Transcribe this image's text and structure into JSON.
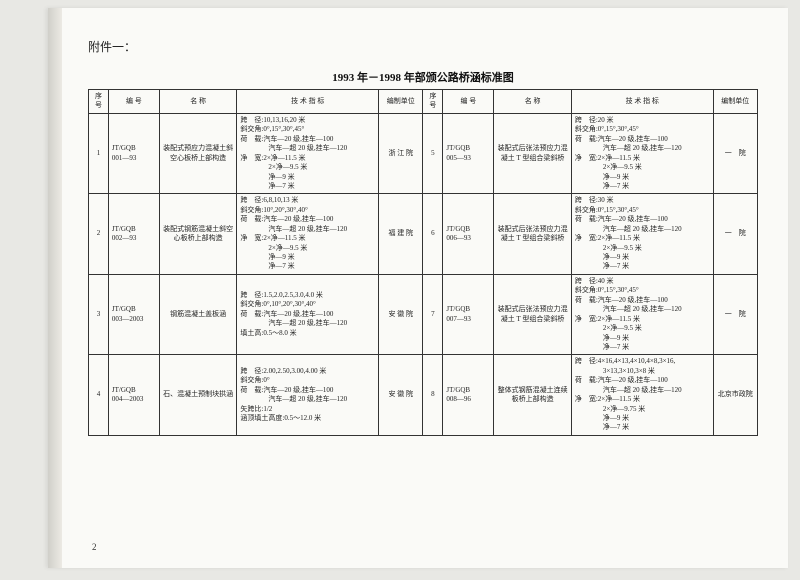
{
  "attachment_label": "附件一：",
  "title": "1993 年－1998 年部颁公路桥涵标准图",
  "page_number": "2",
  "headers": {
    "idx": "序号",
    "code": "编 号",
    "name": "名   称",
    "spec": "技 术 指 标",
    "unit": "编制单位"
  },
  "rows": [
    {
      "left": {
        "idx": "1",
        "code": "JT/GQB\n001—93",
        "name": "装配式预应力混凝土斜空心板桥上部构造",
        "spec": "跨　径:10,13,16,20 米\n斜交角:0°,15°,30°,45°\n荷　载:汽车—20 级,挂车—100\n　　　　汽车—超 20 级,挂车—120\n净　宽:2×净—11.5 米\n　　　　2×净—9.5 米\n　　　　净—9 米\n　　　　净—7 米",
        "unit": "浙 江 院"
      },
      "right": {
        "idx": "5",
        "code": "JT/GQB\n005—93",
        "name": "装配式后张法预应力混凝土 T 型组合梁斜桥",
        "spec": "跨　径:20 米\n斜交角:0°,15°,30°,45°\n荷　载:汽车—20 级,挂车—100\n　　　　汽车—超 20 级,挂车—120\n净　宽:2×净—11.5 米\n　　　　2×净—9.5 米\n　　　　净—9 米\n　　　　净—7 米",
        "unit": "一　院"
      }
    },
    {
      "left": {
        "idx": "2",
        "code": "JT/GQB\n002—93",
        "name": "装配式钢筋混凝土斜空心板桥上部构造",
        "spec": "跨　径:6,8,10,13 米\n斜交角:10°,20°,30°,40°\n荷　载:汽车—20 级,挂车—100\n　　　　汽车—超 20 级,挂车—120\n净　宽:2×净—11.5 米\n　　　　2×净—9.5 米\n　　　　净—9 米\n　　　　净—7 米",
        "unit": "福 建 院"
      },
      "right": {
        "idx": "6",
        "code": "JT/GQB\n006—93",
        "name": "装配式后张法预应力混凝土 T 型组合梁斜桥",
        "spec": "跨　径:30 米\n斜交角:0°,15°,30°,45°\n荷　载:汽车—20 级,挂车—100\n　　　　汽车—超 20 级,挂车—120\n净　宽:2×净—11.5 米\n　　　　2×净—9.5 米\n　　　　净—9 米\n　　　　净—7 米",
        "unit": "一　院"
      }
    },
    {
      "left": {
        "idx": "3",
        "code": "JT/GQB\n003—2003",
        "name": "钢筋混凝土盖板涵",
        "spec": "跨　径:1.5,2.0,2.5,3.0,4.0 米\n斜交角:0°,10°,20°,30°,40°\n荷　载:汽车—20 级,挂车—100\n　　　　汽车—超 20 级,挂车—120\n填土高:0.5～8.0 米",
        "unit": "安 徽 院"
      },
      "right": {
        "idx": "7",
        "code": "JT/GQB\n007—93",
        "name": "装配式后张法预应力混凝土 T 型组合梁斜桥",
        "spec": "跨　径:40 米\n斜交角:0°,15°,30°,45°\n荷　载:汽车—20 级,挂车—100\n　　　　汽车—超 20 级,挂车—120\n净　宽:2×净—11.5 米\n　　　　2×净—9.5 米\n　　　　净—9 米\n　　　　净—7 米",
        "unit": "一　院"
      }
    },
    {
      "left": {
        "idx": "4",
        "code": "JT/GQB\n004—2003",
        "name": "石、混凝土预制块拱涵",
        "spec": "跨　径:2.00,2.50,3.00,4.00 米\n斜交角:0°\n荷　载:汽车—20 级,挂车—100\n　　　　汽车—超 20 级,挂车—120\n矢跨比:1/2\n涵顶填土高度:0.5～12.0 米",
        "unit": "安 徽 院"
      },
      "right": {
        "idx": "8",
        "code": "JT/GQB\n008—96",
        "name": "整体式钢筋混凝土连续板桥上部构造",
        "spec": "跨　径:4×16,4×13,4×10,4×8,3×16,\n　　　　3×13,3×10,3×8 米\n荷　载:汽车—20 级,挂车—100\n　　　　汽车—超 20 级,挂车—120\n净　宽:2×净—11.5 米\n　　　　2×净—9.75 米\n　　　　净—9 米\n　　　　净—7 米",
        "unit": "北京市政院"
      }
    }
  ]
}
